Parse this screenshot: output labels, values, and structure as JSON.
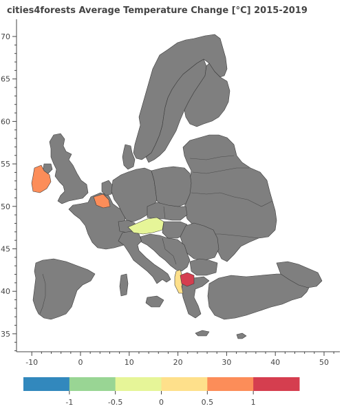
{
  "title": "cities4forests Average Temperature Change [°C] 2015-2019",
  "map": {
    "x_axis": {
      "ticks": [
        -10,
        0,
        10,
        20,
        30,
        40,
        50
      ],
      "range": [
        -13,
        52
      ]
    },
    "y_axis": {
      "ticks": [
        35,
        40,
        45,
        50,
        55,
        60,
        65,
        70
      ],
      "range": [
        32,
        72
      ]
    },
    "default_country_color": "#7f7f7f",
    "highlighted_regions": [
      {
        "name": "Ireland",
        "value": 0.5,
        "color": "#fc8d59"
      },
      {
        "name": "Belgium",
        "value": 0.5,
        "color": "#fc8d59"
      },
      {
        "name": "Austria",
        "value": -0.5,
        "color": "#e6f598"
      },
      {
        "name": "Albania",
        "value": 0,
        "color": "#fee08b"
      },
      {
        "name": "North Macedonia",
        "value": 1,
        "color": "#d53e4f"
      }
    ]
  },
  "colorbar": {
    "colors": [
      "#3288bd",
      "#99d594",
      "#e6f598",
      "#fee08b",
      "#fc8d59",
      "#d53e4f"
    ],
    "ticks": [
      "-1",
      "-0.5",
      "0",
      "0.5",
      "1"
    ]
  }
}
